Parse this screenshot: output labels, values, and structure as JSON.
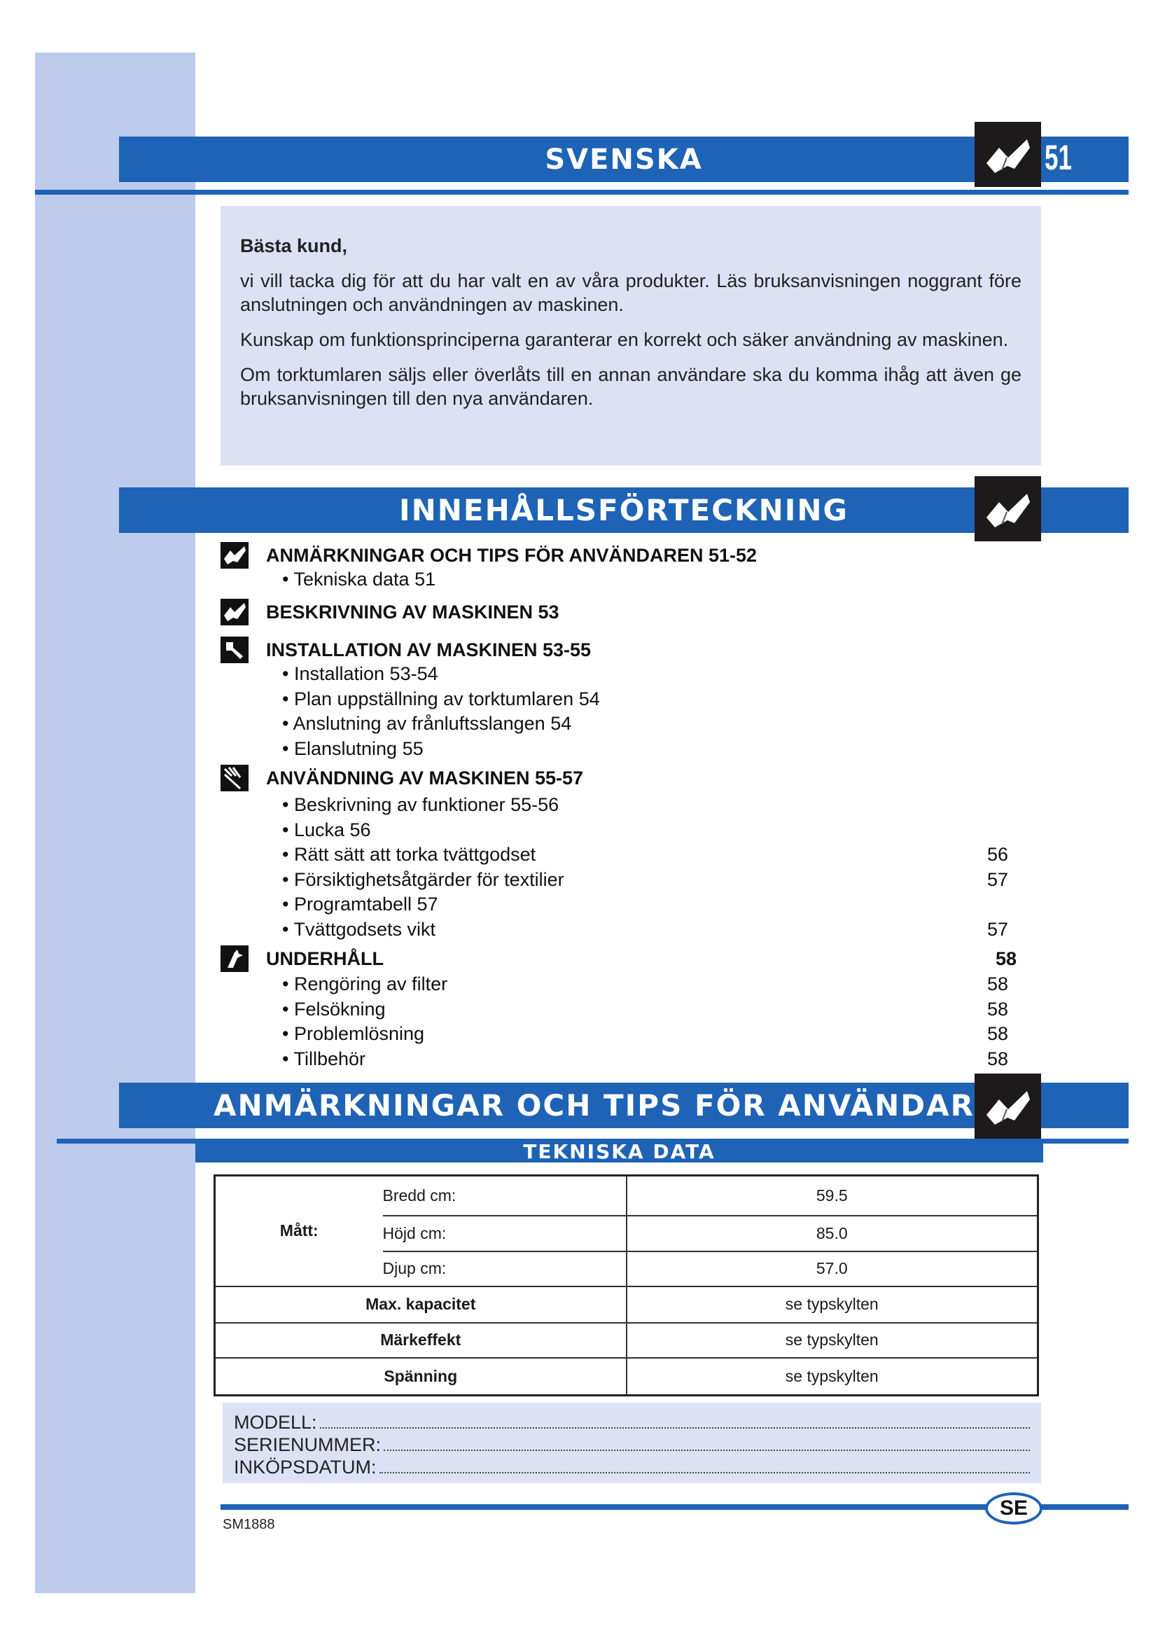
{
  "header": {
    "title": "SVENSKA",
    "page_number": "51"
  },
  "intro": {
    "greeting": "Bästa kund,",
    "paragraphs": [
      "vi vill tacka dig för att du har valt en av våra produkter. Läs bruksanvisningen noggrant före anslutningen och användningen av maskinen.",
      "Kunskap om funktionsprinciperna garanterar en korrekt och säker användning av maskinen.",
      "Om torktumlaren säljs eller överlåts till en annan användare ska du komma ihåg att även ge bruksanvisningen till den nya användaren."
    ]
  },
  "toc": {
    "title": "INNEHÅLLSFÖRTECKNING",
    "sections": [
      {
        "title": "ANMÄRKNINGAR OCH TIPS FÖR ANVÄNDAREN 51-52",
        "icon": "book-icon",
        "page": "",
        "items": [
          {
            "label": "Tekniska data 51",
            "page": ""
          }
        ]
      },
      {
        "title": "BESKRIVNING AV MASKINEN 53",
        "icon": "book-icon",
        "page": "",
        "items": []
      },
      {
        "title": "INSTALLATION AV MASKINEN 53-55",
        "icon": "wrench-icon",
        "page": "",
        "items": [
          {
            "label": "Installation 53-54",
            "page": ""
          },
          {
            "label": "Plan uppställning av torktumlaren 54",
            "page": ""
          },
          {
            "label": "Anslutning av frånluftsslangen 54",
            "page": ""
          },
          {
            "label": "Elanslutning 55",
            "page": ""
          }
        ]
      },
      {
        "title": "ANVÄNDNING AV MASKINEN 55-57",
        "icon": "hand-icon",
        "page": "",
        "items": [
          {
            "label": "Beskrivning av funktioner 55-56",
            "page": ""
          },
          {
            "label": "Lucka 56",
            "page": ""
          },
          {
            "label": "Rätt sätt att torka tvättgodset",
            "page": "56"
          },
          {
            "label": "Försiktighetsåtgärder för textilier",
            "page": "57"
          },
          {
            "label": "Programtabell 57",
            "page": ""
          },
          {
            "label": "Tvättgodsets vikt",
            "page": "57"
          }
        ]
      },
      {
        "title": "UNDERHÅLL",
        "icon": "cleaning-icon",
        "page": "58",
        "items": [
          {
            "label": "Rengöring av filter",
            "page": "58"
          },
          {
            "label": "Felsökning",
            "page": "58"
          },
          {
            "label": "Problemlösning",
            "page": "58"
          },
          {
            "label": "Tillbehör",
            "page": "58"
          }
        ]
      }
    ]
  },
  "notes": {
    "title": "ANMÄRKNINGAR OCH TIPS FÖR ANVÄNDAR",
    "subtitle": "TEKNISKA DATA"
  },
  "spec": {
    "dims_label": "Mått:",
    "dims": [
      {
        "label": "Bredd cm:",
        "value": "59.5"
      },
      {
        "label": "Höjd cm:",
        "value": "85.0"
      },
      {
        "label": "Djup cm:",
        "value": "57.0"
      }
    ],
    "rows": [
      {
        "label": "Max. kapacitet",
        "value": "se typskylten"
      },
      {
        "label": "Märkeffekt",
        "value": "se typskylten"
      },
      {
        "label": "Spänning",
        "value": "se typskylten"
      }
    ]
  },
  "record": {
    "model": "MODELL:",
    "serial": "SERIENUMMER:",
    "date": "INKÖPSDATUM:"
  },
  "footer": {
    "lang_badge": "SE",
    "code": "SM1888"
  },
  "colors": {
    "brand_blue": "#1e63b5",
    "panel": "#dde1f4",
    "sidebar": "#bdcbec"
  }
}
